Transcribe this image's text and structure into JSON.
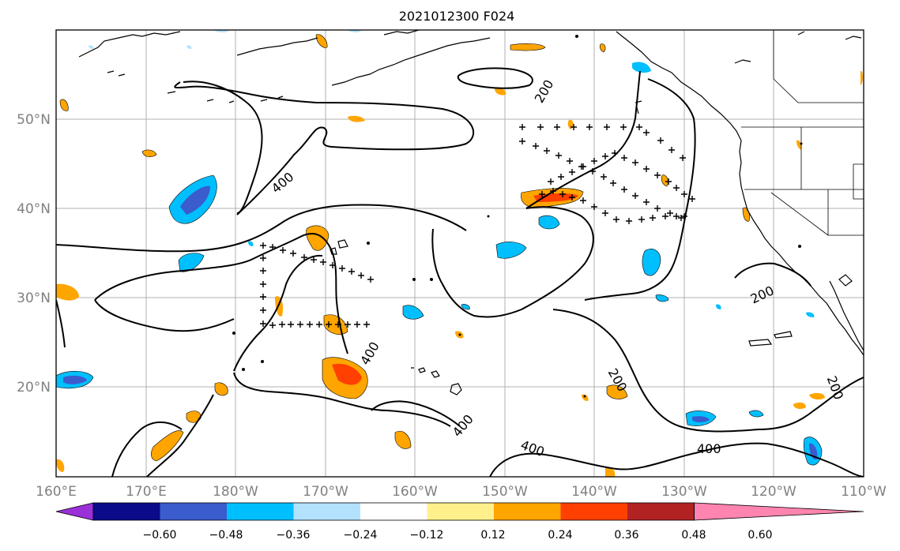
{
  "title": "2021012300 F024",
  "longitude_ticks": [
    "160°E",
    "170°E",
    "180°W",
    "170°W",
    "160°W",
    "150°W",
    "140°W",
    "130°W",
    "120°W",
    "110°W"
  ],
  "latitude_ticks": [
    "50°N",
    "40°N",
    "30°N",
    "20°N"
  ],
  "contour_levels": [
    "200",
    "400"
  ],
  "contour_labels": [
    "200",
    "400",
    "400",
    "400",
    "200",
    "400",
    "200",
    "200",
    "400"
  ],
  "colorbar": {
    "ticks": [
      "−0.60",
      "−0.48",
      "−0.36",
      "−0.24",
      "−0.12",
      "0.12",
      "0.24",
      "0.36",
      "0.48",
      "0.60"
    ],
    "colors": [
      "#9b30d8",
      "#0a0a8a",
      "#3a5ccc",
      "#00bfff",
      "#b3e2ff",
      "#ffffff",
      "#fff08c",
      "#ffa500",
      "#ff4000",
      "#b22222",
      "#ff85b0"
    ]
  },
  "map": {
    "projection": "cylindrical",
    "lon_range": [
      160,
      250
    ],
    "lat_range": [
      10,
      60
    ],
    "colors": {
      "coast": "#000000",
      "contour": "#000000",
      "grid": "#b0b0b0"
    }
  }
}
